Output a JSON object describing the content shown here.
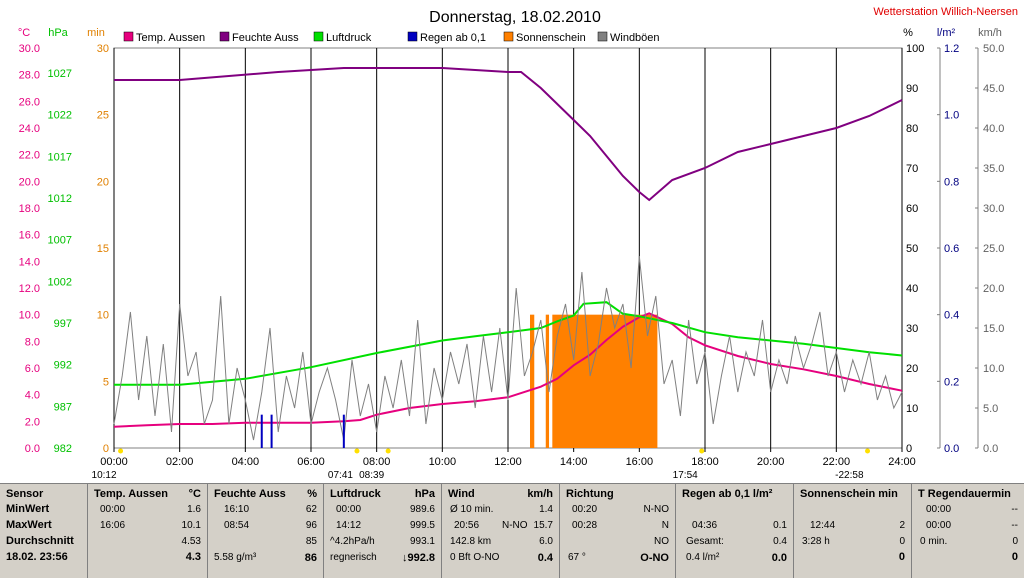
{
  "chart_data": {
    "type": "line",
    "title": "Donnerstag, 18.02.2010",
    "station": "Wetterstation Willich-Neersen",
    "x_ticks": [
      "00:00",
      "02:00",
      "04:00",
      "06:00",
      "08:00",
      "10:00",
      "12:00",
      "14:00",
      "16:00",
      "18:00",
      "20:00",
      "22:00",
      "24:00"
    ],
    "axes": {
      "temp": {
        "unit": "°C",
        "range": [
          0,
          30
        ],
        "ticks": [
          "0.0",
          "2.0",
          "4.0",
          "6.0",
          "8.0",
          "10.0",
          "12.0",
          "14.0",
          "16.0",
          "18.0",
          "20.0",
          "22.0",
          "24.0",
          "26.0",
          "28.0",
          "30.0"
        ],
        "color": "#e6007e"
      },
      "pressure": {
        "unit": "hPa",
        "range": [
          982,
          1030
        ],
        "ticks": [
          "982",
          "987",
          "992",
          "997",
          "1002",
          "1007",
          "1012",
          "1017",
          "1022",
          "1027"
        ],
        "color": "#00c000"
      },
      "sun": {
        "unit": "min",
        "range": [
          0,
          30
        ],
        "ticks": [
          "0",
          "5",
          "10",
          "15",
          "20",
          "25",
          "30"
        ],
        "color": "#e08000"
      },
      "humidity": {
        "unit": "%",
        "range": [
          0,
          100
        ],
        "ticks": [
          "0",
          "10",
          "20",
          "30",
          "40",
          "50",
          "60",
          "70",
          "80",
          "90",
          "100"
        ],
        "color": "#000000"
      },
      "rain": {
        "unit": "l/m²",
        "range": [
          0,
          1.2
        ],
        "ticks": [
          "0.0",
          "0.2",
          "0.4",
          "0.6",
          "0.8",
          "1.0",
          "1.2"
        ],
        "color": "#000080"
      },
      "wind": {
        "unit": "km/h",
        "range": [
          0,
          50
        ],
        "ticks": [
          "0.0",
          "5.0",
          "10.0",
          "15.0",
          "20.0",
          "25.0",
          "30.0",
          "35.0",
          "40.0",
          "45.0",
          "50.0"
        ],
        "color": "#606060"
      }
    },
    "legend": [
      {
        "label": "Temp. Aussen",
        "color": "#e6007e"
      },
      {
        "label": "Feuchte Auss",
        "color": "#800080"
      },
      {
        "label": "Luftdruck",
        "color": "#00e000"
      },
      {
        "label": "Regen ab 0,1",
        "color": "#0000c0"
      },
      {
        "label": "Sonnenschein",
        "color": "#ff8000"
      },
      {
        "label": "Windböen",
        "color": "#808080"
      }
    ],
    "series": [
      {
        "name": "Temp. Aussen",
        "axis": "temp",
        "x": [
          0,
          1,
          2,
          3,
          4,
          5,
          6,
          7,
          7.5,
          8,
          9,
          10,
          11,
          12,
          13,
          13.5,
          14,
          14.5,
          15,
          15.5,
          16,
          16.3,
          17,
          17.5,
          18,
          19,
          20,
          21,
          22,
          23,
          24
        ],
        "y": [
          1.6,
          1.7,
          1.8,
          1.8,
          1.9,
          1.9,
          1.9,
          2.0,
          2.1,
          2.5,
          3.0,
          3.3,
          3.5,
          3.8,
          4.6,
          5.2,
          6.2,
          7.0,
          8.1,
          9.1,
          9.8,
          10.1,
          9.3,
          8.3,
          7.7,
          6.9,
          6.3,
          5.9,
          5.4,
          4.8,
          4.3
        ]
      },
      {
        "name": "Feuchte Auss",
        "axis": "humidity",
        "x": [
          0,
          2,
          5,
          7,
          8,
          9,
          10,
          12,
          12.4,
          13,
          14,
          14.5,
          15,
          15.5,
          16,
          16.3,
          17,
          18,
          19,
          20,
          21,
          22,
          23,
          24
        ],
        "y": [
          92,
          92,
          94,
          95,
          95,
          95,
          95,
          94,
          94,
          90,
          82,
          78,
          73,
          68,
          64,
          62,
          67,
          70,
          74,
          76,
          78,
          80,
          83,
          87
        ]
      },
      {
        "name": "Luftdruck",
        "axis": "pressure",
        "x": [
          0,
          2,
          4,
          6,
          8,
          10,
          11,
          12,
          13,
          13.5,
          14,
          14.3,
          15,
          15.5,
          16,
          17,
          18,
          19,
          20,
          21,
          22,
          23,
          24
        ],
        "y": [
          989.6,
          989.6,
          990.3,
          991.7,
          993.4,
          994.9,
          995.4,
          995.9,
          996.4,
          997.2,
          997.9,
          999.3,
          999.5,
          998.1,
          997.8,
          997.0,
          995.9,
          995.3,
          994.9,
          994.5,
          994.0,
          993.5,
          993.1
        ]
      },
      {
        "name": "Windböen",
        "axis": "wind",
        "x": [
          0,
          0.25,
          0.5,
          0.75,
          1,
          1.25,
          1.5,
          1.75,
          2,
          2.25,
          2.5,
          2.75,
          3,
          3.25,
          3.5,
          3.75,
          4,
          4.25,
          4.5,
          4.75,
          5,
          5.25,
          5.5,
          5.75,
          6,
          6.25,
          6.5,
          6.75,
          7,
          7.25,
          7.5,
          7.75,
          8,
          8.25,
          8.5,
          8.75,
          9,
          9.25,
          9.5,
          9.75,
          10,
          10.25,
          10.5,
          10.75,
          11,
          11.25,
          11.5,
          11.75,
          12,
          12.25,
          12.5,
          12.75,
          13,
          13.25,
          13.5,
          13.75,
          14,
          14.25,
          14.5,
          14.75,
          15,
          15.25,
          15.5,
          15.75,
          16,
          16.25,
          16.5,
          16.75,
          17,
          17.25,
          17.5,
          17.75,
          18,
          18.25,
          18.5,
          18.75,
          19,
          19.25,
          19.5,
          19.75,
          20,
          20.25,
          20.5,
          20.75,
          21,
          21.25,
          21.5,
          21.75,
          22,
          22.25,
          22.5,
          22.75,
          23,
          23.25,
          23.5,
          23.75,
          24
        ],
        "y": [
          3,
          9,
          17,
          6,
          14,
          4,
          13,
          2,
          18,
          9,
          12,
          3,
          6,
          19,
          3,
          10,
          6,
          1,
          7,
          15,
          2,
          9,
          5,
          12,
          3,
          7,
          10,
          6,
          1,
          11,
          4,
          8,
          2,
          9,
          5,
          11,
          4,
          16,
          3,
          10,
          6,
          12,
          8,
          13,
          5,
          14,
          7,
          15,
          6,
          20,
          9,
          12,
          16,
          7,
          14,
          18,
          11,
          22,
          9,
          13,
          20,
          15,
          18,
          10,
          24,
          14,
          19,
          8,
          11,
          4,
          16,
          8,
          12,
          3,
          9,
          14,
          7,
          12,
          9,
          16,
          7,
          11,
          8,
          14,
          10,
          13,
          17,
          9,
          12,
          7,
          11,
          8,
          12,
          6,
          9,
          5,
          7
        ]
      },
      {
        "name": "Regen ab 0,1",
        "axis": "rain",
        "x": [
          4.5,
          4.8,
          7.0
        ],
        "y": [
          0.1,
          0.1,
          0.1
        ]
      }
    ],
    "sunshine_intervals": [
      [
        12.67,
        12.8
      ],
      [
        13.15,
        13.25
      ],
      [
        13.35,
        16.55
      ]
    ],
    "sunshine_level": 10,
    "bottom_markers": [
      {
        "label": "10:12",
        "x": 0.2
      },
      {
        "label": "07:41",
        "x": 7.4
      },
      {
        "label": "08:39",
        "x": 8.35
      },
      {
        "label": "17:54",
        "x": 17.9
      },
      {
        "label": "-22:58",
        "x": 22.95
      }
    ]
  },
  "summary": {
    "sensor": {
      "header": "Sensor",
      "rows": [
        "MinWert",
        "MaxWert",
        "Durchschnitt",
        "18.02. 23:56"
      ]
    },
    "temp": {
      "header": "Temp. Aussen",
      "unit": "°C",
      "min_time": "00:00",
      "min_val": "1.6",
      "max_time": "16:06",
      "max_val": "10.1",
      "avg": "4.53",
      "current": "4.3"
    },
    "humidity": {
      "header": "Feuchte Auss",
      "unit": "%",
      "min_time": "16:10",
      "min_val": "62",
      "max_time": "08:54",
      "max_val": "96",
      "avg": "85",
      "abs": "5.58 g/m³",
      "current": "86"
    },
    "pressure": {
      "header": "Luftdruck",
      "unit": "hPa",
      "min_time": "00:00",
      "min_val": "989.6",
      "max_time": "14:12",
      "max_val": "999.5",
      "trend": "^4.2hPa/h",
      "avg": "993.1",
      "forecast": "regnerisch",
      "current": "↓992.8"
    },
    "wind": {
      "header": "Wind",
      "unit": "km/h",
      "r1a": "Ø 10 min.",
      "r1b": "1.4",
      "r2a": "20:56",
      "r2b": "N-NO",
      "r2c": "15.7",
      "r3a": "142.8 km",
      "r3b": "6.0",
      "r4a": "0 Bft O-NO",
      "r4b": "0.4"
    },
    "direction": {
      "header": "Richtung",
      "r1a": "00:20",
      "r1b": "N-NO",
      "r2a": "00:28",
      "r2b": "N",
      "r3b": "NO",
      "r4a": "67 °",
      "r4b": "O-NO"
    },
    "rain": {
      "header": "Regen ab 0,1 l/m²",
      "r2a": "04:36",
      "r2b": "0.1",
      "r3a": "Gesamt:",
      "r3b": "0.4",
      "r4a": "0.4 l/m²",
      "r4b": "0.0"
    },
    "sun": {
      "header": "Sonnenschein min",
      "r2a": "12:44",
      "r2b": "2",
      "r3a": "3:28 h",
      "r3b": "0",
      "r4b": "0"
    },
    "raindur": {
      "header": "T Regendauermin",
      "r1a": "00:00",
      "r1b": "--",
      "r2a": "00:00",
      "r2b": "--",
      "r3a": "0 min.",
      "r3b": "0",
      "r4b": "0"
    }
  }
}
